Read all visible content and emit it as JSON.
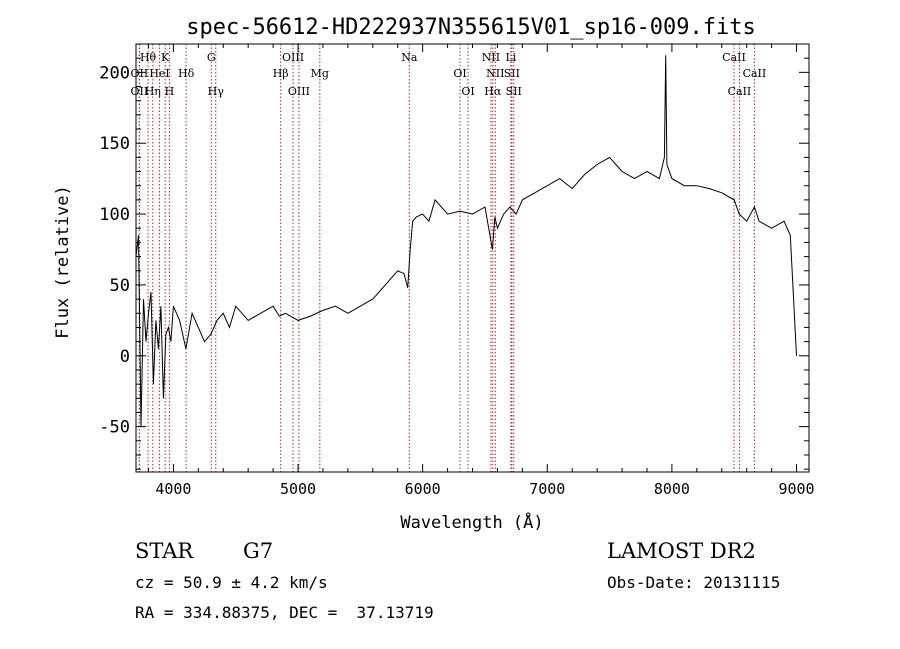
{
  "chart_data": {
    "type": "line",
    "title": "spec-56612-HD222937N355615V01_sp16-009.fits",
    "xlabel": "Wavelength (Å)",
    "ylabel": "Flux (relative)",
    "xlim": [
      3700,
      9100
    ],
    "ylim": [
      -82,
      220
    ],
    "x_ticks": [
      4000,
      5000,
      6000,
      7000,
      8000,
      9000
    ],
    "y_ticks": [
      -50,
      0,
      50,
      100,
      150,
      200
    ],
    "x_tick_labels": [
      "4000",
      "5000",
      "6000",
      "7000",
      "8000",
      "9000"
    ],
    "y_tick_labels": [
      "-50",
      "0",
      "50",
      "100",
      "150",
      "200"
    ],
    "grid": false,
    "line_color": "#000000",
    "marker_color": "#a03030",
    "series": [
      {
        "x": [
          3700,
          3720,
          3740,
          3760,
          3780,
          3800,
          3820,
          3840,
          3860,
          3880,
          3900,
          3920,
          3940,
          3960,
          3980,
          4000,
          4050,
          4100,
          4150,
          4200,
          4250,
          4300,
          4350,
          4400,
          4450,
          4500,
          4600,
          4700,
          4800,
          4850,
          4900,
          5000,
          5100,
          5200,
          5300,
          5400,
          5500,
          5600,
          5700,
          5750,
          5800,
          5850,
          5880,
          5900,
          5920,
          5950,
          6000,
          6050,
          6100,
          6200,
          6300,
          6400,
          6500,
          6560,
          6580,
          6600,
          6650,
          6700,
          6750,
          6800,
          6900,
          7000,
          7100,
          7200,
          7300,
          7400,
          7500,
          7600,
          7700,
          7800,
          7900,
          7940,
          7950,
          7960,
          8000,
          8100,
          8200,
          8300,
          8400,
          8500,
          8540,
          8600,
          8662,
          8700,
          8800,
          8900,
          8950,
          9000
        ],
        "y": [
          70,
          85,
          -50,
          40,
          10,
          30,
          45,
          -20,
          25,
          5,
          35,
          -30,
          15,
          20,
          10,
          35,
          25,
          5,
          30,
          20,
          10,
          15,
          25,
          30,
          20,
          35,
          25,
          30,
          35,
          28,
          30,
          25,
          28,
          32,
          35,
          30,
          35,
          40,
          50,
          55,
          60,
          58,
          48,
          75,
          95,
          98,
          100,
          95,
          110,
          100,
          102,
          100,
          105,
          75,
          98,
          90,
          100,
          105,
          100,
          110,
          115,
          120,
          125,
          118,
          128,
          135,
          140,
          130,
          125,
          130,
          125,
          140,
          212,
          135,
          125,
          120,
          120,
          118,
          115,
          110,
          100,
          95,
          105,
          95,
          90,
          95,
          85,
          0
        ]
      }
    ],
    "line_markers": [
      {
        "label": "Hθ",
        "x": 3797,
        "row": 1
      },
      {
        "label": "K",
        "x": 3934,
        "row": 1
      },
      {
        "label": "G",
        "x": 4304,
        "row": 1
      },
      {
        "label": "OIII",
        "x": 4960,
        "row": 1
      },
      {
        "label": "Na",
        "x": 5893,
        "row": 1
      },
      {
        "label": "NII",
        "x": 6548,
        "row": 1
      },
      {
        "label": "Li",
        "x": 6708,
        "row": 1
      },
      {
        "label": "CaII",
        "x": 8498,
        "row": 1
      },
      {
        "label": "OII",
        "x": 3727,
        "row": 2
      },
      {
        "label": "HeI",
        "x": 3889,
        "row": 2
      },
      {
        "label": "Hδ",
        "x": 4102,
        "row": 2
      },
      {
        "label": "Hβ",
        "x": 4861,
        "row": 2
      },
      {
        "label": "Mg",
        "x": 5175,
        "row": 2
      },
      {
        "label": "OI",
        "x": 6300,
        "row": 2
      },
      {
        "label": "NII",
        "x": 6583,
        "row": 2
      },
      {
        "label": "SII",
        "x": 6716,
        "row": 2
      },
      {
        "label": "CaII",
        "x": 8662,
        "row": 2
      },
      {
        "label": "OII",
        "x": 3727,
        "row": 3
      },
      {
        "label": "Hη",
        "x": 3835,
        "row": 3
      },
      {
        "label": "H",
        "x": 3968,
        "row": 3
      },
      {
        "label": "Hγ",
        "x": 4340,
        "row": 3
      },
      {
        "label": "OIII",
        "x": 5007,
        "row": 3
      },
      {
        "label": "OI",
        "x": 6364,
        "row": 3
      },
      {
        "label": "Hα",
        "x": 6563,
        "row": 3
      },
      {
        "label": "SII",
        "x": 6731,
        "row": 3
      },
      {
        "label": "CaII",
        "x": 8542,
        "row": 3
      }
    ]
  },
  "info": {
    "object_type": "STAR",
    "subclass": "G7",
    "survey": "LAMOST DR2",
    "cz": "cz = 50.9 ± 4.2 km/s",
    "obs_date": "Obs-Date: 20131115",
    "coords": "RA = 334.88375, DEC =  37.13719"
  }
}
